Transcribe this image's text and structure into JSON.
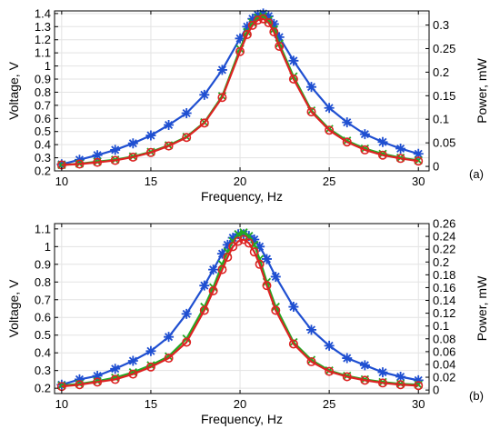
{
  "chart_data": [
    {
      "type": "line",
      "panel_label": "(a)",
      "xlabel": "Frequency, Hz",
      "ylabel": "Voltage, V",
      "y2label": "Power, mW",
      "xlim": [
        9.6,
        30.6
      ],
      "ylim": [
        0.2,
        1.42
      ],
      "y2lim": [
        -0.0095,
        0.33
      ],
      "xticks": [
        10,
        15,
        20,
        25,
        30
      ],
      "yticks": [
        0.2,
        0.3,
        0.4,
        0.5,
        0.6,
        0.7,
        0.8,
        0.9,
        1,
        1.1,
        1.2,
        1.3,
        1.4
      ],
      "y2ticks": [
        0,
        0.05,
        0.1,
        0.15,
        0.2,
        0.25,
        0.3
      ],
      "x": [
        10,
        11,
        12,
        13,
        14,
        15,
        16,
        17,
        18,
        19,
        20,
        20.4,
        20.7,
        21.0,
        21.3,
        21.6,
        21.9,
        22.2,
        23,
        24,
        25,
        26,
        27,
        28,
        29,
        30
      ],
      "series": [
        {
          "color": "#1f4fd1",
          "marker": "asterisk",
          "axis": "y",
          "values": [
            0.25,
            0.285,
            0.32,
            0.36,
            0.41,
            0.47,
            0.55,
            0.64,
            0.78,
            0.97,
            1.21,
            1.3,
            1.36,
            1.39,
            1.4,
            1.38,
            1.32,
            1.22,
            1.04,
            0.84,
            0.68,
            0.57,
            0.48,
            0.42,
            0.37,
            0.33
          ]
        },
        {
          "color": "#22aa22",
          "marker": "x",
          "axis": "y",
          "values": [
            0.245,
            0.255,
            0.27,
            0.285,
            0.31,
            0.345,
            0.395,
            0.46,
            0.57,
            0.77,
            1.13,
            1.26,
            1.33,
            1.37,
            1.38,
            1.35,
            1.28,
            1.17,
            0.92,
            0.66,
            0.52,
            0.43,
            0.37,
            0.33,
            0.3,
            0.28
          ]
        },
        {
          "color": "#dd2222",
          "marker": "circle",
          "axis": "y",
          "values": [
            0.245,
            0.252,
            0.265,
            0.28,
            0.305,
            0.34,
            0.39,
            0.455,
            0.565,
            0.76,
            1.11,
            1.24,
            1.31,
            1.35,
            1.36,
            1.33,
            1.26,
            1.15,
            0.9,
            0.65,
            0.51,
            0.42,
            0.36,
            0.32,
            0.295,
            0.275
          ]
        }
      ]
    },
    {
      "type": "line",
      "panel_label": "(b)",
      "xlabel": "Frequency, Hz",
      "ylabel": "Voltage, V",
      "y2label": "Power, mW",
      "xlim": [
        9.6,
        30.6
      ],
      "ylim": [
        0.17,
        1.13
      ],
      "y2lim": [
        -0.0055,
        0.26
      ],
      "xticks": [
        10,
        15,
        20,
        25,
        30
      ],
      "yticks": [
        0.2,
        0.3,
        0.4,
        0.5,
        0.6,
        0.7,
        0.8,
        0.9,
        1,
        1.1
      ],
      "y2ticks": [
        0,
        0.02,
        0.04,
        0.06,
        0.08,
        0.1,
        0.12,
        0.14,
        0.16,
        0.18,
        0.2,
        0.22,
        0.24,
        0.26
      ],
      "x": [
        10,
        11,
        12,
        13,
        14,
        15,
        16,
        17,
        18,
        18.5,
        19,
        19.3,
        19.6,
        19.9,
        20.2,
        20.5,
        20.8,
        21.1,
        21.5,
        22,
        23,
        24,
        25,
        26,
        27,
        28,
        29,
        30
      ],
      "series": [
        {
          "color": "#1f4fd1",
          "marker": "asterisk",
          "axis": "y",
          "values": [
            0.22,
            0.25,
            0.27,
            0.31,
            0.355,
            0.41,
            0.49,
            0.62,
            0.78,
            0.87,
            0.96,
            1.01,
            1.05,
            1.07,
            1.07,
            1.06,
            1.04,
            1.0,
            0.93,
            0.83,
            0.66,
            0.53,
            0.44,
            0.37,
            0.33,
            0.29,
            0.265,
            0.245
          ]
        },
        {
          "color": "#22aa22",
          "marker": "x",
          "axis": "y",
          "values": [
            0.215,
            0.225,
            0.24,
            0.26,
            0.29,
            0.33,
            0.38,
            0.48,
            0.66,
            0.77,
            0.9,
            0.97,
            1.03,
            1.07,
            1.08,
            1.06,
            1.01,
            0.93,
            0.8,
            0.66,
            0.46,
            0.36,
            0.3,
            0.27,
            0.25,
            0.235,
            0.225,
            0.22
          ]
        },
        {
          "color": "#dd2222",
          "marker": "circle",
          "axis": "y",
          "values": [
            0.21,
            0.22,
            0.235,
            0.25,
            0.28,
            0.32,
            0.37,
            0.46,
            0.64,
            0.75,
            0.87,
            0.94,
            1.0,
            1.03,
            1.04,
            1.02,
            0.97,
            0.9,
            0.78,
            0.64,
            0.45,
            0.35,
            0.295,
            0.265,
            0.245,
            0.23,
            0.22,
            0.215
          ]
        }
      ]
    }
  ]
}
